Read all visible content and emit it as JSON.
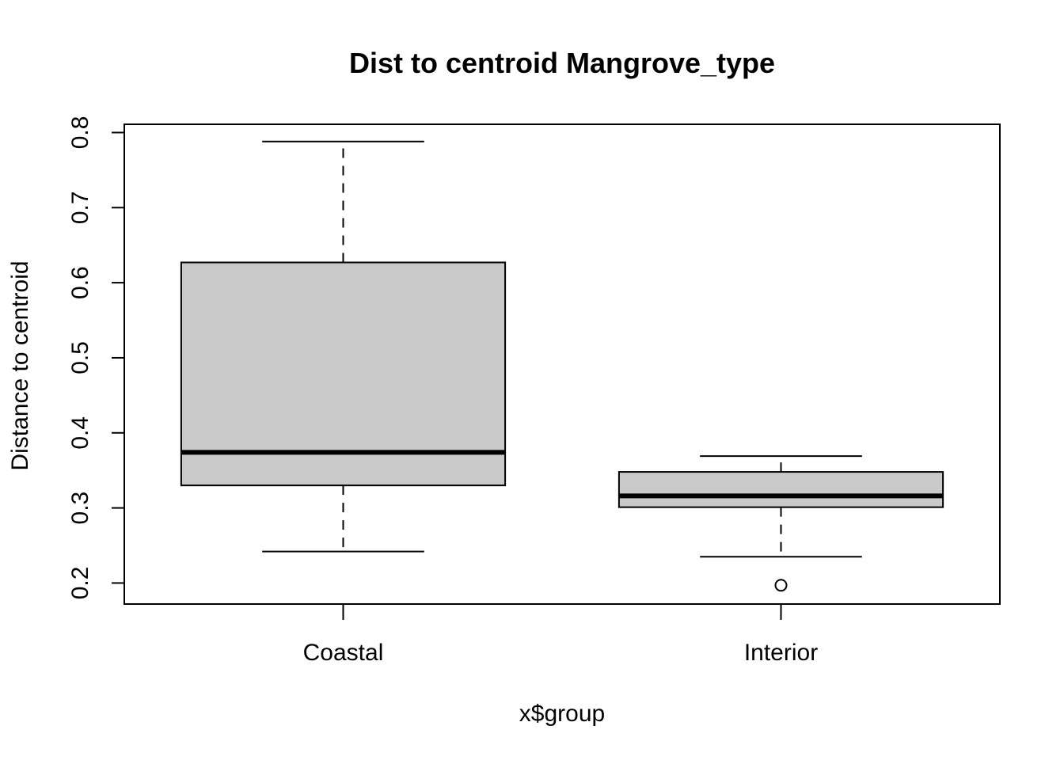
{
  "chart_data": {
    "type": "box",
    "title": "Dist to centroid Mangrove_type",
    "xlabel": "x$group",
    "ylabel": "Distance to centroid",
    "categories": [
      "Coastal",
      "Interior"
    ],
    "boxes": [
      {
        "category": "Coastal",
        "whisker_low": 0.242,
        "q1": 0.33,
        "median": 0.374,
        "q3": 0.627,
        "whisker_high": 0.788,
        "outliers": []
      },
      {
        "category": "Interior",
        "whisker_low": 0.235,
        "q1": 0.301,
        "median": 0.316,
        "q3": 0.348,
        "whisker_high": 0.369,
        "outliers": [
          0.197
        ]
      }
    ],
    "yticks": [
      0.2,
      0.3,
      0.4,
      0.5,
      0.6,
      0.7,
      0.8
    ],
    "ytick_labels": [
      "0.2",
      "0.3",
      "0.4",
      "0.5",
      "0.6",
      "0.7",
      "0.8"
    ],
    "ylim": [
      0.172,
      0.811
    ],
    "grid": false,
    "legend": "none",
    "colors": {
      "box_fill": "#c9c9c9",
      "line": "#000000",
      "background": "#ffffff"
    }
  }
}
